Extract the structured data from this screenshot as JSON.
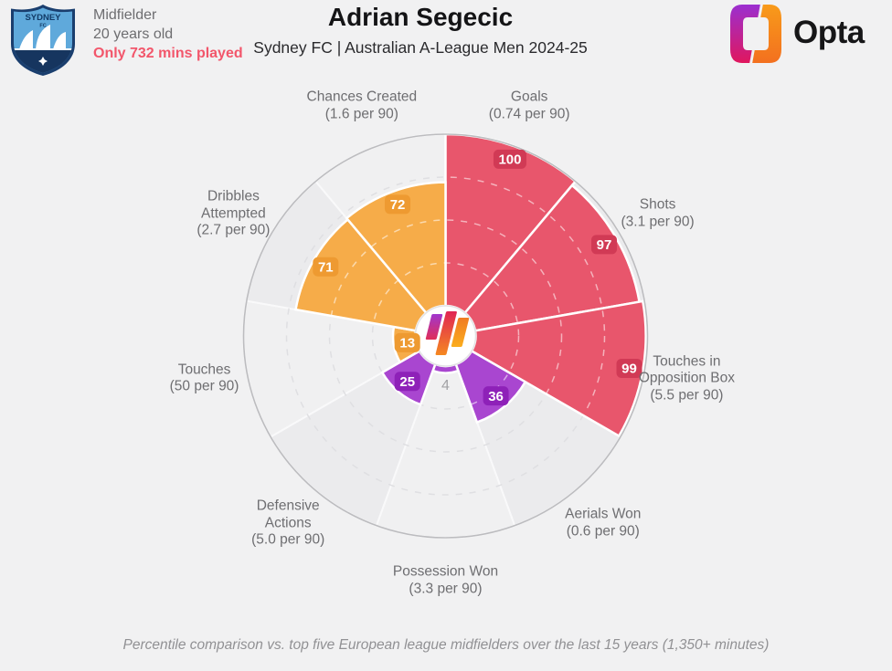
{
  "header": {
    "crest_line1": "SYDNEY",
    "crest_line2": "FC",
    "position": "Midfielder",
    "age": "20 years old",
    "minutes_warning": "Only 732 mins played",
    "player_name": "Adrian Segecic",
    "subtitle": "Sydney FC | Australian A-League Men 2024-25",
    "brand_wordmark": "Opta"
  },
  "footer": {
    "caption": "Percentile comparison vs. top five European league midfielders over the last 15 years (1,350+ minutes)"
  },
  "colors": {
    "attacking": "#e8566c",
    "attacking_badge": "#d13a55",
    "possession": "#f6ac49",
    "possession_badge": "#ee9a31",
    "defending": "#a946d0",
    "defending_badge": "#8e21b8",
    "muted_value": "#a2a2a5",
    "warning_text": "#f2566b"
  },
  "chart_data": {
    "type": "pizza",
    "unit": "percentile",
    "rlim": [
      0,
      100
    ],
    "ring_values": [
      25,
      50,
      75
    ],
    "grid": "dashed-rings",
    "legend_position": "none",
    "start": "top",
    "direction": "clockwise",
    "categories": [
      {
        "id": "goals",
        "label_lines": [
          "Goals"
        ],
        "per90": "(0.74 per 90)",
        "value": 100,
        "group": "attacking"
      },
      {
        "id": "shots",
        "label_lines": [
          "Shots"
        ],
        "per90": "(3.1 per 90)",
        "value": 97,
        "group": "attacking"
      },
      {
        "id": "touches-in-opposition-box",
        "label_lines": [
          "Touches in",
          "Opposition Box"
        ],
        "per90": "(5.5 per 90)",
        "value": 99,
        "group": "attacking"
      },
      {
        "id": "aerials-won",
        "label_lines": [
          "Aerials Won"
        ],
        "per90": "(0.6 per 90)",
        "value": 36,
        "group": "defending"
      },
      {
        "id": "possession-won",
        "label_lines": [
          "Possession Won"
        ],
        "per90": "(3.3 per 90)",
        "value": 4,
        "group": "defending"
      },
      {
        "id": "defensive-actions",
        "label_lines": [
          "Defensive",
          "Actions"
        ],
        "per90": "(5.0 per 90)",
        "value": 25,
        "group": "defending"
      },
      {
        "id": "touches",
        "label_lines": [
          "Touches"
        ],
        "per90": "(50 per 90)",
        "value": 13,
        "group": "possession"
      },
      {
        "id": "dribbles-attempted",
        "label_lines": [
          "Dribbles",
          "Attempted"
        ],
        "per90": "(2.7 per 90)",
        "value": 71,
        "group": "possession"
      },
      {
        "id": "chances-created",
        "label_lines": [
          "Chances Created"
        ],
        "per90": "(1.6 per 90)",
        "value": 72,
        "group": "possession"
      }
    ]
  }
}
